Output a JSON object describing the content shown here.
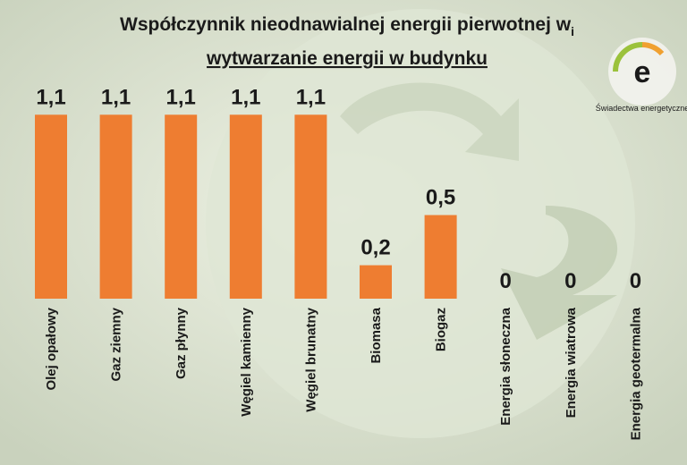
{
  "chart_data": {
    "type": "bar",
    "title": "Współczynnik nieodnawialnej energii pierwotnej w",
    "title_subscript": "i",
    "subtitle": "wytwarzanie energii w budynku",
    "logo_text": "Świadectwa energetyczne",
    "logo_letter": "e",
    "categories": [
      "Olej opałowy",
      "Gaz ziemny",
      "Gaz płynny",
      "Węgiel kamienny",
      "Węgiel brunatny",
      "Biomasa",
      "Biogaz",
      "Energia słoneczna",
      "Energia wiatrowa",
      "Energia geotermalna"
    ],
    "values": [
      1.1,
      1.1,
      1.1,
      1.1,
      1.1,
      0.2,
      0.5,
      0,
      0,
      0
    ],
    "value_labels": [
      "1,1",
      "1,1",
      "1,1",
      "1,1",
      "1,1",
      "0,2",
      "0,5",
      "0",
      "0",
      "0"
    ],
    "color": "#ee7d31"
  }
}
